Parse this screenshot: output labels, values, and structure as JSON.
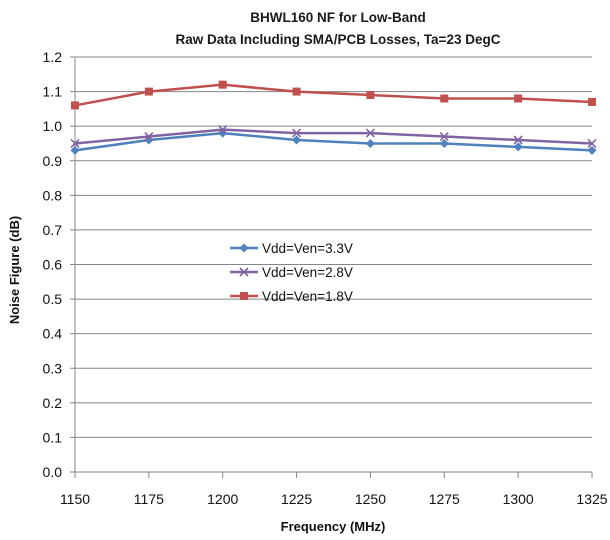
{
  "chart_data": {
    "type": "line",
    "title": "BHWL160 NF for Low-Band",
    "subtitle": "Raw Data Including SMA/PCB Losses, Ta=23 DegC",
    "xlabel": "Frequency (MHz)",
    "ylabel": "Noise Figure (dB)",
    "x": [
      1150,
      1175,
      1200,
      1225,
      1250,
      1275,
      1300,
      1325
    ],
    "xlim": [
      1150,
      1325
    ],
    "ylim": [
      0.0,
      1.2
    ],
    "x_ticks": [
      "1150",
      "1175",
      "1200",
      "1225",
      "1250",
      "1275",
      "1300",
      "1325"
    ],
    "y_ticks": [
      "0.0",
      "0.1",
      "0.2",
      "0.3",
      "0.4",
      "0.5",
      "0.6",
      "0.7",
      "0.8",
      "0.9",
      "1.0",
      "1.1",
      "1.2"
    ],
    "grid": "horizontal",
    "legend_position": "center-left",
    "series": [
      {
        "name": "Vdd=Ven=3.3V",
        "color": "#4F81BD",
        "marker": "diamond",
        "values": [
          0.93,
          0.96,
          0.98,
          0.96,
          0.95,
          0.95,
          0.94,
          0.93
        ]
      },
      {
        "name": "Vdd=Ven=2.8V",
        "color": "#8064A2",
        "marker": "x",
        "values": [
          0.95,
          0.97,
          0.99,
          0.98,
          0.98,
          0.97,
          0.96,
          0.95
        ]
      },
      {
        "name": "Vdd=Ven=1.8V",
        "color": "#C0504D",
        "marker": "square",
        "values": [
          1.06,
          1.1,
          1.12,
          1.1,
          1.09,
          1.08,
          1.08,
          1.07
        ]
      }
    ]
  }
}
